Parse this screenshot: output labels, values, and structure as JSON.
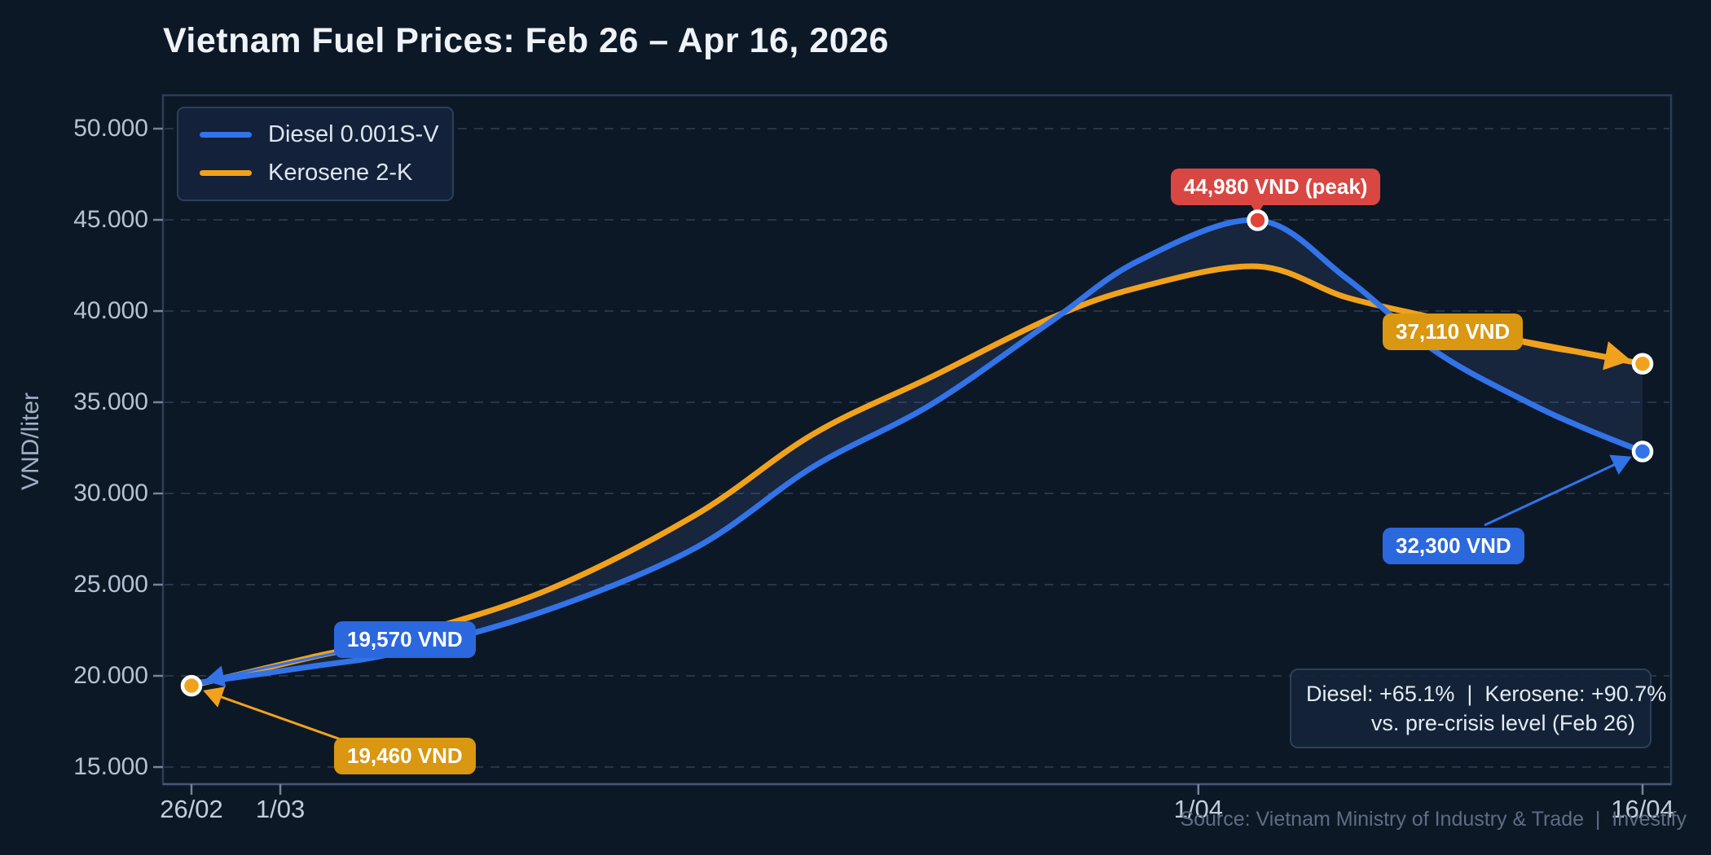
{
  "chart_data": {
    "type": "line",
    "title": "Vietnam Fuel Prices: Feb 26 – Apr 16, 2026",
    "ylabel": "VND/liter",
    "ylim": [
      15000,
      50000
    ],
    "grid": "horizontal-dashed",
    "legend_position": "upper left",
    "x_unit": "days since 2026-02-26",
    "x_range_days": [
      0,
      49
    ],
    "y_ticks": [
      {
        "label": "50.000",
        "value": 50000
      },
      {
        "label": "45.000",
        "value": 45000
      },
      {
        "label": "40.000",
        "value": 40000
      },
      {
        "label": "35.000",
        "value": 35000
      },
      {
        "label": "30.000",
        "value": 30000
      },
      {
        "label": "25.000",
        "value": 25000
      },
      {
        "label": "20.000",
        "value": 20000
      },
      {
        "label": "15.000",
        "value": 15000
      }
    ],
    "x_ticks": [
      {
        "label": "26/02",
        "day": 0
      },
      {
        "label": "1/03",
        "day": 3
      },
      {
        "label": "1/04",
        "day": 34
      },
      {
        "label": "16/04",
        "day": 49
      }
    ],
    "series": [
      {
        "name": "Diesel 0.001S-V",
        "color": "#3273e8",
        "points": [
          [
            0,
            19570
          ],
          [
            4,
            20500
          ],
          [
            7,
            21300
          ],
          [
            12,
            23600
          ],
          [
            17,
            27000
          ],
          [
            21,
            31470
          ],
          [
            25,
            34900
          ],
          [
            29,
            39400
          ],
          [
            32,
            42770
          ],
          [
            36,
            44980
          ],
          [
            39,
            41800
          ],
          [
            42,
            37800
          ],
          [
            45,
            35100
          ],
          [
            47,
            33600
          ],
          [
            49,
            32300
          ]
        ]
      },
      {
        "name": "Kerosene 2-K",
        "color": "#f1a21d",
        "points": [
          [
            0,
            19460
          ],
          [
            4,
            21000
          ],
          [
            7,
            22100
          ],
          [
            12,
            24690
          ],
          [
            17,
            28800
          ],
          [
            21,
            33260
          ],
          [
            25,
            36400
          ],
          [
            29,
            39600
          ],
          [
            32,
            41300
          ],
          [
            36,
            42450
          ],
          [
            39,
            40750
          ],
          [
            42,
            39600
          ],
          [
            45,
            38300
          ],
          [
            47,
            37700
          ],
          [
            49,
            37110
          ]
        ]
      }
    ],
    "annotations": [
      {
        "id": "peak",
        "label": "44,980 VND (peak)",
        "series": "Diesel 0.001S-V",
        "day": 36,
        "value": 44980,
        "badge_color": "#d84742"
      },
      {
        "id": "kerosene-end",
        "label": "37,110 VND",
        "series": "Kerosene 2-K",
        "day": 49,
        "value": 37110,
        "badge_color": "#d99712"
      },
      {
        "id": "diesel-end",
        "label": "32,300 VND",
        "series": "Diesel 0.001S-V",
        "day": 49,
        "value": 32300,
        "badge_color": "#2b68de"
      },
      {
        "id": "diesel-start",
        "label": "19,570 VND",
        "series": "Diesel 0.001S-V",
        "day": 0,
        "value": 19570,
        "badge_color": "#2b68de"
      },
      {
        "id": "kerosene-start",
        "label": "19,460 VND",
        "series": "Kerosene 2-K",
        "day": 0,
        "value": 19460,
        "badge_color": "#d99712"
      }
    ]
  },
  "summary_box": {
    "line1": "Diesel: +65.1%  |  Kerosene: +90.7%",
    "line2": "vs. pre-crisis level (Feb 26)"
  },
  "source": "Source: Vietnam Ministry of Industry & Trade  |  Investify"
}
